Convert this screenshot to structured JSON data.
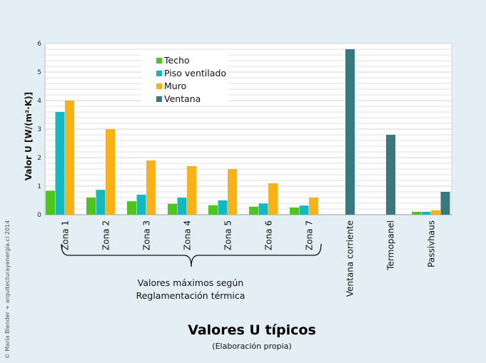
{
  "credit": "© María Blender + arquitecturayenergia.cl 2014",
  "annotation": "Valores máximos según",
  "annotation_line2": "Reglamentación térmica",
  "chart_data": {
    "type": "bar",
    "title": "Valores U típicos",
    "subtitle": "(Elaboración propia)",
    "ylabel": "Valor U [W/(m²·K)]",
    "ylim": [
      0,
      6
    ],
    "yticks": [
      "0",
      "1",
      "2",
      "3",
      "4",
      "5",
      "6"
    ],
    "grid": true,
    "legend_position": "top-left",
    "categories": [
      "Zona 1",
      "Zona 2",
      "Zona 3",
      "Zona 4",
      "Zona 5",
      "Zona 6",
      "Zona 7",
      "Ventana corriente",
      "Termopanel",
      "Passivhaus"
    ],
    "series": [
      {
        "name": "Techo",
        "color": "#4dc51c",
        "values": [
          0.84,
          0.6,
          0.47,
          0.38,
          0.33,
          0.28,
          0.25,
          null,
          null,
          0.1
        ]
      },
      {
        "name": "Piso ventilado",
        "color": "#12b8c2",
        "values": [
          3.6,
          0.87,
          0.7,
          0.6,
          0.5,
          0.39,
          0.32,
          null,
          null,
          0.1
        ]
      },
      {
        "name": "Muro",
        "color": "#f8b117",
        "values": [
          4.0,
          3.0,
          1.9,
          1.7,
          1.6,
          1.1,
          0.6,
          null,
          null,
          0.15
        ]
      },
      {
        "name": "Ventana",
        "color": "#37797f",
        "values": [
          null,
          null,
          null,
          null,
          null,
          null,
          null,
          5.8,
          2.8,
          0.8
        ]
      }
    ]
  }
}
